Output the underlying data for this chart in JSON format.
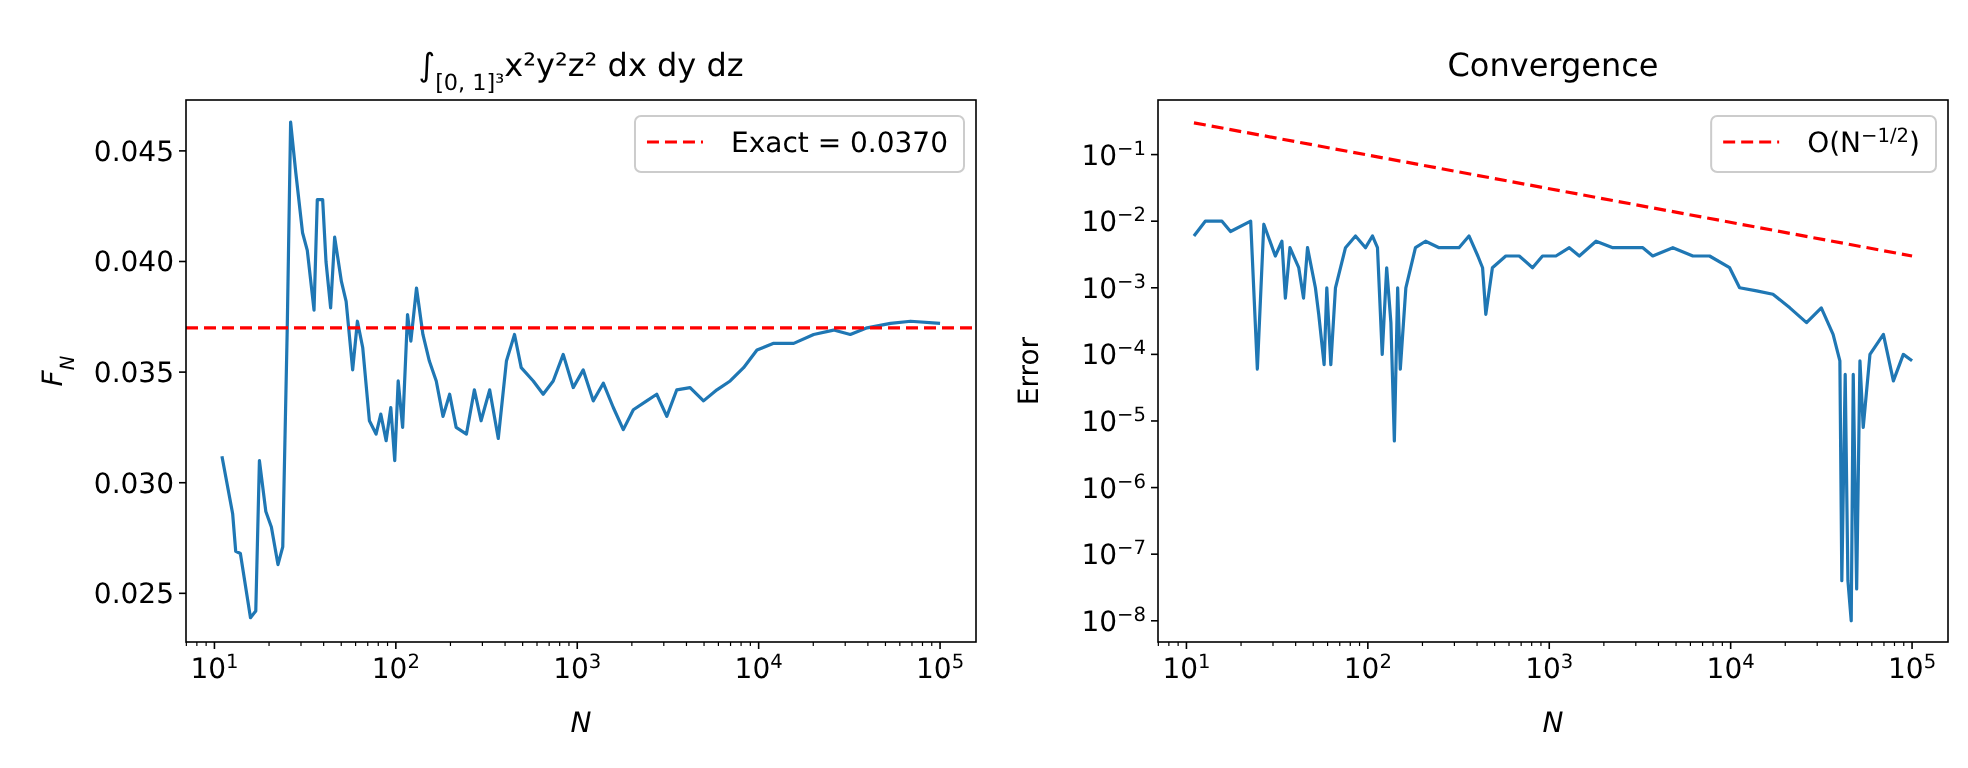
{
  "chart_data": [
    {
      "type": "line",
      "title": "∫$_{[0, 1]³}$x²y²z² dx dy dz",
      "xlabel": "N",
      "ylabel": "F$_{N}$",
      "log": "x",
      "legend": "top right",
      "grid": false,
      "xlim": [
        6.97,
        157800
      ],
      "ylim": [
        0.0228,
        0.0473
      ],
      "xticks": [
        {
          "value": 10,
          "label": "10$^{1}$"
        },
        {
          "value": 100,
          "label": "10$^{2}$"
        },
        {
          "value": 1000,
          "label": "10$^{3}$"
        },
        {
          "value": 10000,
          "label": "10$^{4}$"
        },
        {
          "value": 100000,
          "label": "10$^{5}$"
        },
        {
          "value": 7,
          "label": null
        },
        {
          "value": 8,
          "label": null
        },
        {
          "value": 9,
          "label": null
        },
        {
          "value": 20,
          "label": null
        },
        {
          "value": 30,
          "label": null
        },
        {
          "value": 40,
          "label": null
        },
        {
          "value": 50,
          "label": null
        },
        {
          "value": 60,
          "label": null
        },
        {
          "value": 70,
          "label": null
        },
        {
          "value": 80,
          "label": null
        },
        {
          "value": 90,
          "label": null
        },
        {
          "value": 200,
          "label": null
        },
        {
          "value": 300,
          "label": null
        },
        {
          "value": 400,
          "label": null
        },
        {
          "value": 500,
          "label": null
        },
        {
          "value": 600,
          "label": null
        },
        {
          "value": 700,
          "label": null
        },
        {
          "value": 800,
          "label": null
        },
        {
          "value": 900,
          "label": null
        },
        {
          "value": 2000,
          "label": null
        },
        {
          "value": 3000,
          "label": null
        },
        {
          "value": 4000,
          "label": null
        },
        {
          "value": 5000,
          "label": null
        },
        {
          "value": 6000,
          "label": null
        },
        {
          "value": 7000,
          "label": null
        },
        {
          "value": 8000,
          "label": null
        },
        {
          "value": 9000,
          "label": null
        },
        {
          "value": 20000,
          "label": null
        },
        {
          "value": 30000,
          "label": null
        },
        {
          "value": 40000,
          "label": null
        },
        {
          "value": 50000,
          "label": null
        },
        {
          "value": 60000,
          "label": null
        },
        {
          "value": 70000,
          "label": null
        },
        {
          "value": 80000,
          "label": null
        },
        {
          "value": 90000,
          "label": null
        }
      ],
      "yticks": [
        0.025,
        {
          "value": 0.03,
          "label": "0.030"
        },
        0.035,
        {
          "value": 0.04,
          "label": "0.040"
        },
        0.045
      ],
      "ref_lines": [
        {
          "axis": "y",
          "value": 0.037,
          "label": "Exact = 0.0370",
          "color": "#ff0000",
          "line_style": "dashed"
        }
      ],
      "series": [
        {
          "color": "#1f77b4",
          "x": [
            11,
            12.6,
            13.1,
            13.9,
            15.8,
            16.9,
            17.7,
            19.2,
            20.6,
            22.4,
            23.8,
            25.2,
            26.3,
            28.1,
            30.6,
            32.5,
            35.4,
            36.9,
            39.5,
            41.2,
            43.7,
            46,
            50.1,
            53.2,
            57.8,
            61.4,
            65.7,
            71.5,
            77.8,
            82.6,
            88.4,
            93.8,
            98.6,
            103,
            109,
            116,
            121,
            130,
            141,
            153,
            167,
            182,
            198,
            215,
            245,
            271,
            295,
            329,
            367,
            407,
            451,
            491,
            572,
            649,
            737,
            837,
            950,
            1079,
            1225,
            1392,
            1580,
            1794,
            2038,
            2415,
            2742,
            3116,
            3538,
            4188,
            4966,
            5888,
            6966,
            8260,
            9790,
            12100,
            15600,
            20100,
            25900,
            32000,
            39600,
            53300,
            68800,
            100000
          ],
          "values": [
            0.0312,
            0.0286,
            0.0269,
            0.0268,
            0.0239,
            0.0242,
            0.031,
            0.0287,
            0.028,
            0.0263,
            0.0271,
            0.037,
            0.0463,
            0.044,
            0.0413,
            0.0405,
            0.0378,
            0.0428,
            0.0428,
            0.04,
            0.0379,
            0.0411,
            0.0391,
            0.0382,
            0.0351,
            0.0373,
            0.0361,
            0.0328,
            0.0322,
            0.0331,
            0.0319,
            0.0334,
            0.031,
            0.0346,
            0.0325,
            0.0376,
            0.0364,
            0.0388,
            0.0367,
            0.0355,
            0.0346,
            0.033,
            0.034,
            0.0325,
            0.0322,
            0.0342,
            0.0328,
            0.0342,
            0.032,
            0.0355,
            0.0367,
            0.0352,
            0.0346,
            0.034,
            0.0346,
            0.0358,
            0.0343,
            0.0351,
            0.0337,
            0.0345,
            0.0334,
            0.0324,
            0.0333,
            0.0337,
            0.034,
            0.033,
            0.0342,
            0.0343,
            0.0337,
            0.0342,
            0.0346,
            0.0352,
            0.036,
            0.0363,
            0.0363,
            0.0367,
            0.0369,
            0.0367,
            0.037,
            0.0372,
            0.0373,
            0.0372
          ]
        }
      ]
    },
    {
      "type": "line",
      "title": "Convergence",
      "xlabel": "N",
      "ylabel": "Error",
      "log": "xy",
      "legend": "top right",
      "grid": false,
      "xlim": [
        6.97,
        157800
      ],
      "ylim": [
        4.8e-09,
        0.66
      ],
      "xticks": [
        {
          "value": 10,
          "label": "10$^{1}$"
        },
        {
          "value": 100,
          "label": "10$^{2}$"
        },
        {
          "value": 1000,
          "label": "10$^{3}$"
        },
        {
          "value": 10000,
          "label": "10$^{4}$"
        },
        {
          "value": 100000,
          "label": "10$^{5}$"
        },
        {
          "value": 7,
          "label": null
        },
        {
          "value": 8,
          "label": null
        },
        {
          "value": 9,
          "label": null
        },
        {
          "value": 20,
          "label": null
        },
        {
          "value": 30,
          "label": null
        },
        {
          "value": 40,
          "label": null
        },
        {
          "value": 50,
          "label": null
        },
        {
          "value": 60,
          "label": null
        },
        {
          "value": 70,
          "label": null
        },
        {
          "value": 80,
          "label": null
        },
        {
          "value": 90,
          "label": null
        },
        {
          "value": 200,
          "label": null
        },
        {
          "value": 300,
          "label": null
        },
        {
          "value": 400,
          "label": null
        },
        {
          "value": 500,
          "label": null
        },
        {
          "value": 600,
          "label": null
        },
        {
          "value": 700,
          "label": null
        },
        {
          "value": 800,
          "label": null
        },
        {
          "value": 900,
          "label": null
        },
        {
          "value": 2000,
          "label": null
        },
        {
          "value": 3000,
          "label": null
        },
        {
          "value": 4000,
          "label": null
        },
        {
          "value": 5000,
          "label": null
        },
        {
          "value": 6000,
          "label": null
        },
        {
          "value": 7000,
          "label": null
        },
        {
          "value": 8000,
          "label": null
        },
        {
          "value": 9000,
          "label": null
        },
        {
          "value": 20000,
          "label": null
        },
        {
          "value": 30000,
          "label": null
        },
        {
          "value": 40000,
          "label": null
        },
        {
          "value": 50000,
          "label": null
        },
        {
          "value": 60000,
          "label": null
        },
        {
          "value": 70000,
          "label": null
        },
        {
          "value": 80000,
          "label": null
        },
        {
          "value": 90000,
          "label": null
        }
      ],
      "yticks": [
        {
          "value": 1e-08,
          "label": "10$^{−8}$"
        },
        {
          "value": 1e-07,
          "label": "10$^{−7}$"
        },
        {
          "value": 1e-06,
          "label": "10$^{−6}$"
        },
        {
          "value": 1e-05,
          "label": "10$^{−5}$"
        },
        {
          "value": 0.0001,
          "label": "10$^{−4}$"
        },
        {
          "value": 0.001,
          "label": "10$^{−3}$"
        },
        {
          "value": 0.01,
          "label": "10$^{−2}$"
        },
        {
          "value": 0.1,
          "label": "10$^{−1}$"
        }
      ],
      "series": [
        {
          "color": "#1f77b4",
          "x": [
            11,
            12.7,
            15.7,
            17.5,
            22.6,
            24.6,
            26.7,
            30.9,
            33.6,
            35.1,
            37.2,
            41.6,
            44.2,
            46.5,
            51.4,
            53.6,
            57.4,
            59.4,
            62.5,
            66.3,
            75.3,
            85.5,
            97.1,
            106,
            113,
            120,
            127,
            134,
            140,
            146,
            151,
            162,
            183,
            208,
            247,
            280,
            318,
            361,
            404,
            429,
            447,
            486,
            576,
            683,
            809,
            918,
            1088,
            1290,
            1465,
            1811,
            2240,
            2770,
            3280,
            3720,
            4800,
            6190,
            7650,
            9870,
            11200,
            13900,
            17100,
            21200,
            26200,
            31600,
            36700,
            40000,
            41000,
            42800,
            44300,
            46200,
            47400,
            49500,
            51600,
            53800,
            58600,
            69500,
            78900,
            89500,
            100000
          ],
          "values": [
            0.006,
            0.01,
            0.01,
            0.007,
            0.01,
            6e-05,
            0.009,
            0.003,
            0.005,
            0.0007,
            0.004,
            0.002,
            0.0007,
            0.004,
            0.001,
            0.0004,
            7e-05,
            0.001,
            7e-05,
            0.001,
            0.004,
            0.006,
            0.004,
            0.006,
            0.004,
            0.0001,
            0.002,
            0.0003,
            5e-06,
            0.001,
            6e-05,
            0.001,
            0.004,
            0.005,
            0.004,
            0.004,
            0.004,
            0.006,
            0.003,
            0.002,
            0.0004,
            0.002,
            0.003,
            0.003,
            0.002,
            0.003,
            0.003,
            0.004,
            0.003,
            0.005,
            0.004,
            0.004,
            0.004,
            0.003,
            0.004,
            0.003,
            0.003,
            0.002,
            0.001,
            0.0009,
            0.0008,
            0.0005,
            0.0003,
            0.0005,
            0.0002,
            8e-05,
            4e-08,
            5e-05,
            4e-08,
            1e-08,
            5e-05,
            3e-08,
            8e-05,
            8e-06,
            0.0001,
            0.0002,
            4e-05,
            0.0001,
            8e-05
          ]
        },
        {
          "name": "O(N$^{−1/2}$)",
          "color": "#ff0000",
          "line_style": "dashed",
          "x": [
            11,
            100000
          ],
          "values": [
            0.3,
            0.003
          ]
        }
      ]
    }
  ]
}
